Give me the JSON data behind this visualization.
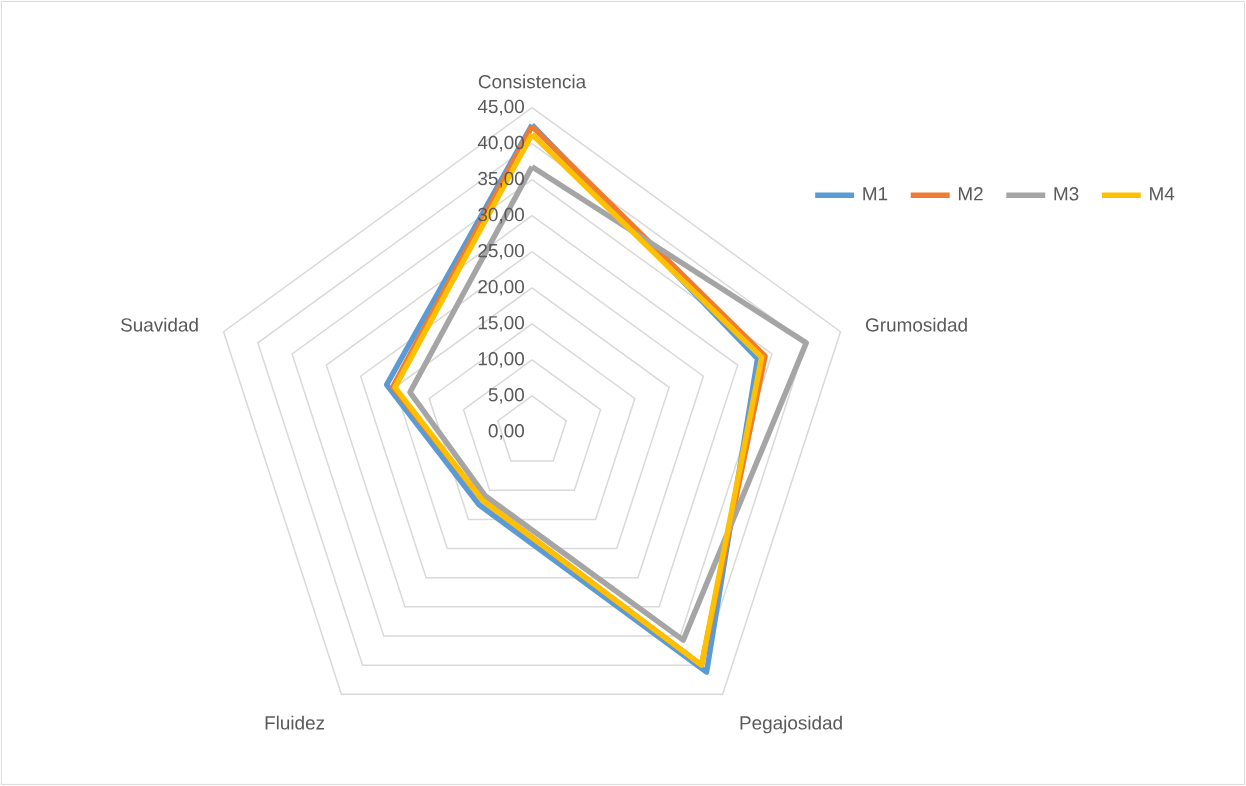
{
  "chart_data": {
    "type": "radar",
    "categories": [
      "Consistencia",
      "Grumosidad",
      "Pegajosidad",
      "Fluidez",
      "Suavidad"
    ],
    "series": [
      {
        "name": "M1",
        "color": "#5b9bd5",
        "values": [
          42.6,
          32.9,
          41.2,
          12.5,
          21.2
        ]
      },
      {
        "name": "M2",
        "color": "#ed7d31",
        "values": [
          42.4,
          34.0,
          40.0,
          11.7,
          20.3
        ]
      },
      {
        "name": "M3",
        "color": "#a5a5a5",
        "values": [
          36.8,
          40.0,
          35.7,
          11.0,
          17.8
        ]
      },
      {
        "name": "M4",
        "color": "#ffc000",
        "values": [
          41.3,
          33.5,
          40.0,
          11.7,
          20.0
        ]
      }
    ],
    "ylim": [
      0,
      45
    ],
    "yticks": [
      {
        "value": 0,
        "label": "0,00"
      },
      {
        "value": 5,
        "label": "5,00"
      },
      {
        "value": 10,
        "label": "10,00"
      },
      {
        "value": 15,
        "label": "15,00"
      },
      {
        "value": 20,
        "label": "20,00"
      },
      {
        "value": 25,
        "label": "25,00"
      },
      {
        "value": 30,
        "label": "30,00"
      },
      {
        "value": 35,
        "label": "35,00"
      },
      {
        "value": 40,
        "label": "40,00"
      },
      {
        "value": 45,
        "label": "45,00"
      }
    ],
    "grid": true,
    "legend": "right",
    "marker": "none",
    "line_style": "solid"
  }
}
